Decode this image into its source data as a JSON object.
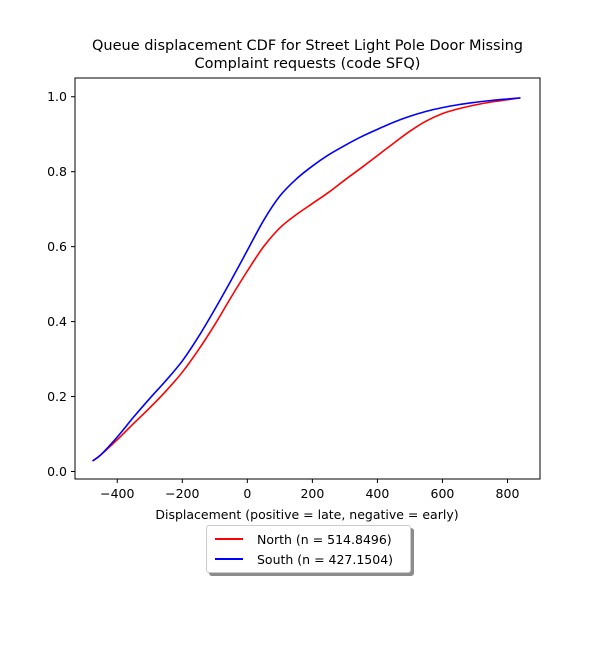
{
  "chart_data": {
    "type": "line",
    "title": "Queue displacement CDF for Street Light Pole Door Missing\nComplaint  requests (code SFQ)",
    "xlabel": "Displacement (positive = late, negative = early)",
    "ylabel": "",
    "xlim": [
      -530,
      900
    ],
    "ylim": [
      -0.02,
      1.05
    ],
    "xticks": [
      -400,
      -200,
      0,
      200,
      400,
      600,
      800
    ],
    "xtick_labels": [
      "−400",
      "−200",
      "0",
      "200",
      "400",
      "600",
      "800"
    ],
    "yticks": [
      0.0,
      0.2,
      0.4,
      0.6,
      0.8,
      1.0
    ],
    "ytick_labels": [
      "0.0",
      "0.2",
      "0.4",
      "0.6",
      "0.8",
      "1.0"
    ],
    "grid": false,
    "legend_position": "below",
    "series": [
      {
        "name": "North (n = 514.8496)",
        "color": "#ff0000",
        "x": [
          -476,
          -450,
          -400,
          -350,
          -300,
          -250,
          -200,
          -150,
          -100,
          -50,
          0,
          50,
          100,
          150,
          200,
          250,
          300,
          350,
          400,
          450,
          500,
          550,
          600,
          650,
          700,
          750,
          800,
          840
        ],
        "y": [
          0.028,
          0.045,
          0.085,
          0.128,
          0.17,
          0.215,
          0.265,
          0.325,
          0.392,
          0.465,
          0.535,
          0.6,
          0.65,
          0.685,
          0.715,
          0.745,
          0.778,
          0.81,
          0.843,
          0.876,
          0.908,
          0.935,
          0.955,
          0.968,
          0.978,
          0.986,
          0.992,
          0.997
        ]
      },
      {
        "name": "South (n = 427.1504)",
        "color": "#0000ff",
        "x": [
          -476,
          -450,
          -400,
          -350,
          -300,
          -250,
          -200,
          -150,
          -100,
          -50,
          0,
          50,
          100,
          150,
          200,
          250,
          300,
          350,
          400,
          450,
          500,
          550,
          600,
          650,
          700,
          750,
          800,
          840
        ],
        "y": [
          0.028,
          0.045,
          0.092,
          0.145,
          0.195,
          0.243,
          0.295,
          0.36,
          0.433,
          0.51,
          0.59,
          0.67,
          0.735,
          0.78,
          0.815,
          0.845,
          0.87,
          0.893,
          0.913,
          0.932,
          0.948,
          0.961,
          0.971,
          0.979,
          0.985,
          0.99,
          0.994,
          0.997
        ]
      }
    ]
  }
}
